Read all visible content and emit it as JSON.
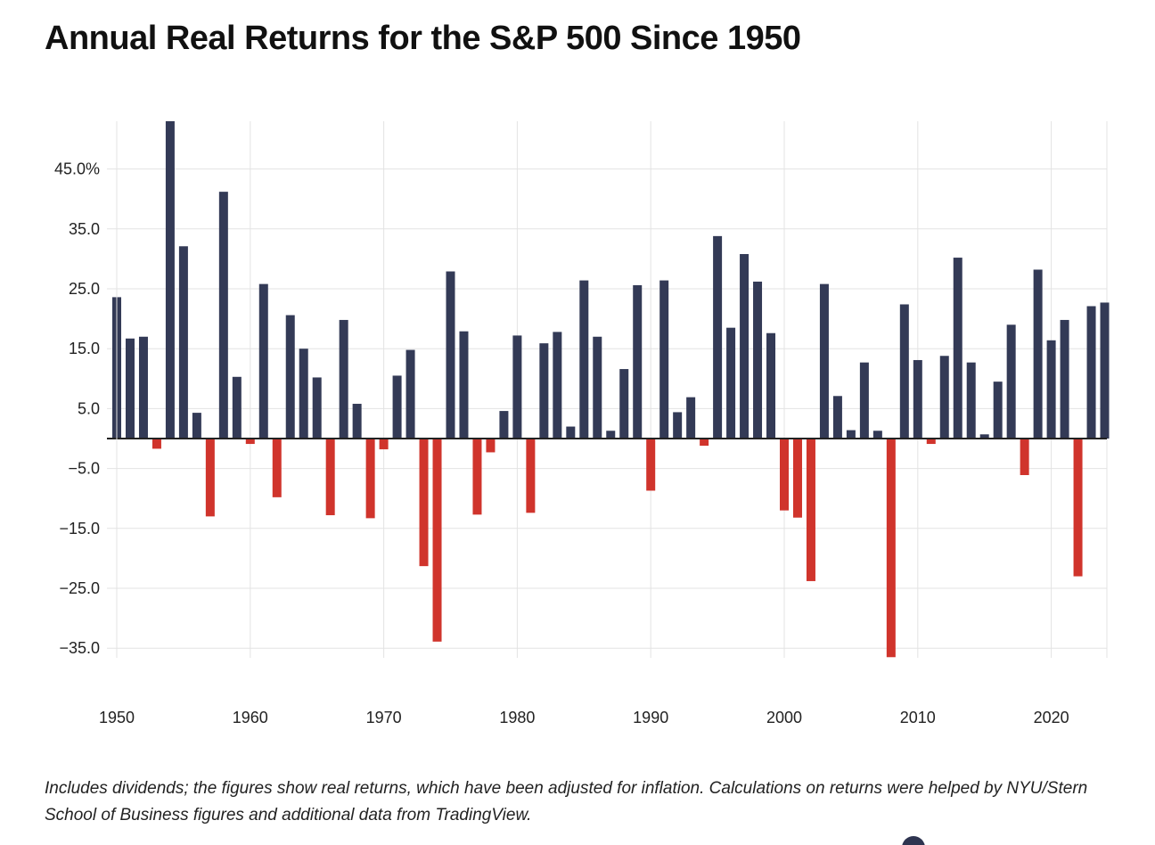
{
  "title": "Annual Real Returns for the S&P 500 Since 1950",
  "footnote": "Includes dividends; the figures show real returns, which have been adjusted for inflation. Calculations on returns were helped by NYU/Stern School of Business figures and additional data from TradingView.",
  "colors": {
    "positive": "#333a56",
    "negative": "#d0342c",
    "grid": "#e3e3e3",
    "zero_line": "#222222"
  },
  "chart_data": {
    "type": "bar",
    "title": "Annual Real Returns for the S&P 500 Since 1950",
    "xlabel": "",
    "ylabel": "",
    "ylim": [
      -36,
      53
    ],
    "y_ticks": [
      45,
      35,
      25,
      15,
      5,
      -5,
      -15,
      -25,
      -35
    ],
    "y_tick_labels": [
      "45.0%",
      "35.0",
      "25.0",
      "15.0",
      "5.0",
      "−5.0",
      "−15.0",
      "−25.0",
      "−35.0"
    ],
    "x_ticks": [
      1950,
      1960,
      1970,
      1980,
      1990,
      2000,
      2010,
      2020
    ],
    "x_tick_labels": [
      "1950",
      "1960",
      "1970",
      "1980",
      "1990",
      "2000",
      "2010",
      "2020"
    ],
    "categories": [
      1950,
      1951,
      1952,
      1953,
      1954,
      1955,
      1956,
      1957,
      1958,
      1959,
      1960,
      1961,
      1962,
      1963,
      1964,
      1965,
      1966,
      1967,
      1968,
      1969,
      1970,
      1971,
      1972,
      1973,
      1974,
      1975,
      1976,
      1977,
      1978,
      1979,
      1980,
      1981,
      1982,
      1983,
      1984,
      1985,
      1986,
      1987,
      1988,
      1989,
      1990,
      1991,
      1992,
      1993,
      1994,
      1995,
      1996,
      1997,
      1998,
      1999,
      2000,
      2001,
      2002,
      2003,
      2004,
      2005,
      2006,
      2007,
      2008,
      2009,
      2010,
      2011,
      2012,
      2013,
      2014,
      2015,
      2016,
      2017,
      2018,
      2019,
      2020,
      2021,
      2022,
      2023,
      2024
    ],
    "values": [
      23.6,
      16.7,
      17.0,
      -1.7,
      53.0,
      32.1,
      4.3,
      -13.0,
      41.2,
      10.3,
      -0.9,
      25.8,
      -9.8,
      20.6,
      15.0,
      10.2,
      -12.8,
      19.8,
      5.8,
      -13.3,
      -1.8,
      10.5,
      14.8,
      -21.3,
      -33.9,
      27.9,
      17.9,
      -12.7,
      -2.3,
      4.6,
      17.2,
      -12.4,
      15.9,
      17.8,
      2.0,
      26.4,
      17.0,
      1.3,
      11.6,
      25.6,
      -8.7,
      26.4,
      4.4,
      6.9,
      -1.2,
      33.8,
      18.5,
      30.8,
      26.2,
      17.6,
      -12.0,
      -13.2,
      -23.8,
      25.8,
      7.1,
      1.4,
      12.7,
      1.3,
      -36.5,
      22.4,
      13.1,
      -0.9,
      13.8,
      30.2,
      12.7,
      0.7,
      9.5,
      19.0,
      -6.1,
      28.2,
      16.4,
      19.8,
      -23.0,
      22.1,
      22.7
    ]
  }
}
